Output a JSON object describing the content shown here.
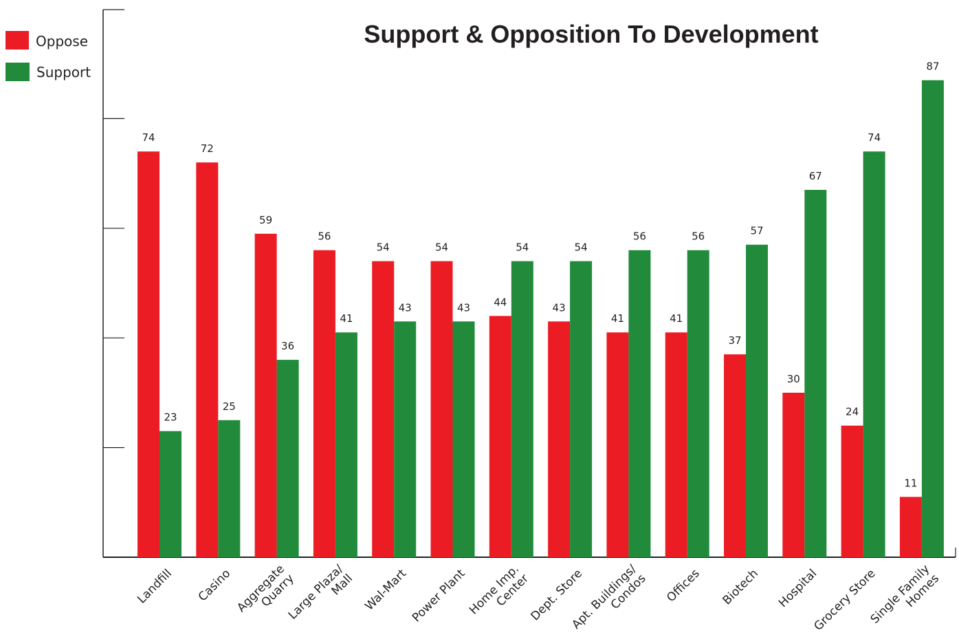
{
  "chart_data": {
    "type": "bar",
    "title": "Support & Opposition To Development",
    "categories": [
      [
        "Landfill"
      ],
      [
        "Casino"
      ],
      [
        "Aggregate",
        "Quarry"
      ],
      [
        "Large Plaza/",
        "Mall"
      ],
      [
        "Wal-Mart"
      ],
      [
        "Power Plant"
      ],
      [
        "Home Imp.",
        "Center"
      ],
      [
        "Dept. Store"
      ],
      [
        "Apt. Buildings/",
        "Condos"
      ],
      [
        "Offices"
      ],
      [
        "Biotech"
      ],
      [
        "Hospital"
      ],
      [
        "Grocery Store"
      ],
      [
        "Single Family",
        "Homes"
      ]
    ],
    "series": [
      {
        "name": "Oppose",
        "color": "#ec1c24",
        "values": [
          74,
          72,
          59,
          56,
          54,
          54,
          44,
          43,
          41,
          41,
          37,
          30,
          24,
          11
        ]
      },
      {
        "name": "Support",
        "color": "#228b3b",
        "values": [
          23,
          25,
          36,
          41,
          43,
          43,
          54,
          54,
          56,
          56,
          57,
          67,
          74,
          87
        ]
      }
    ],
    "ylim": [
      0,
      100
    ],
    "xlabel": "",
    "ylabel": "",
    "grid": false,
    "legend_position": "top-left"
  }
}
